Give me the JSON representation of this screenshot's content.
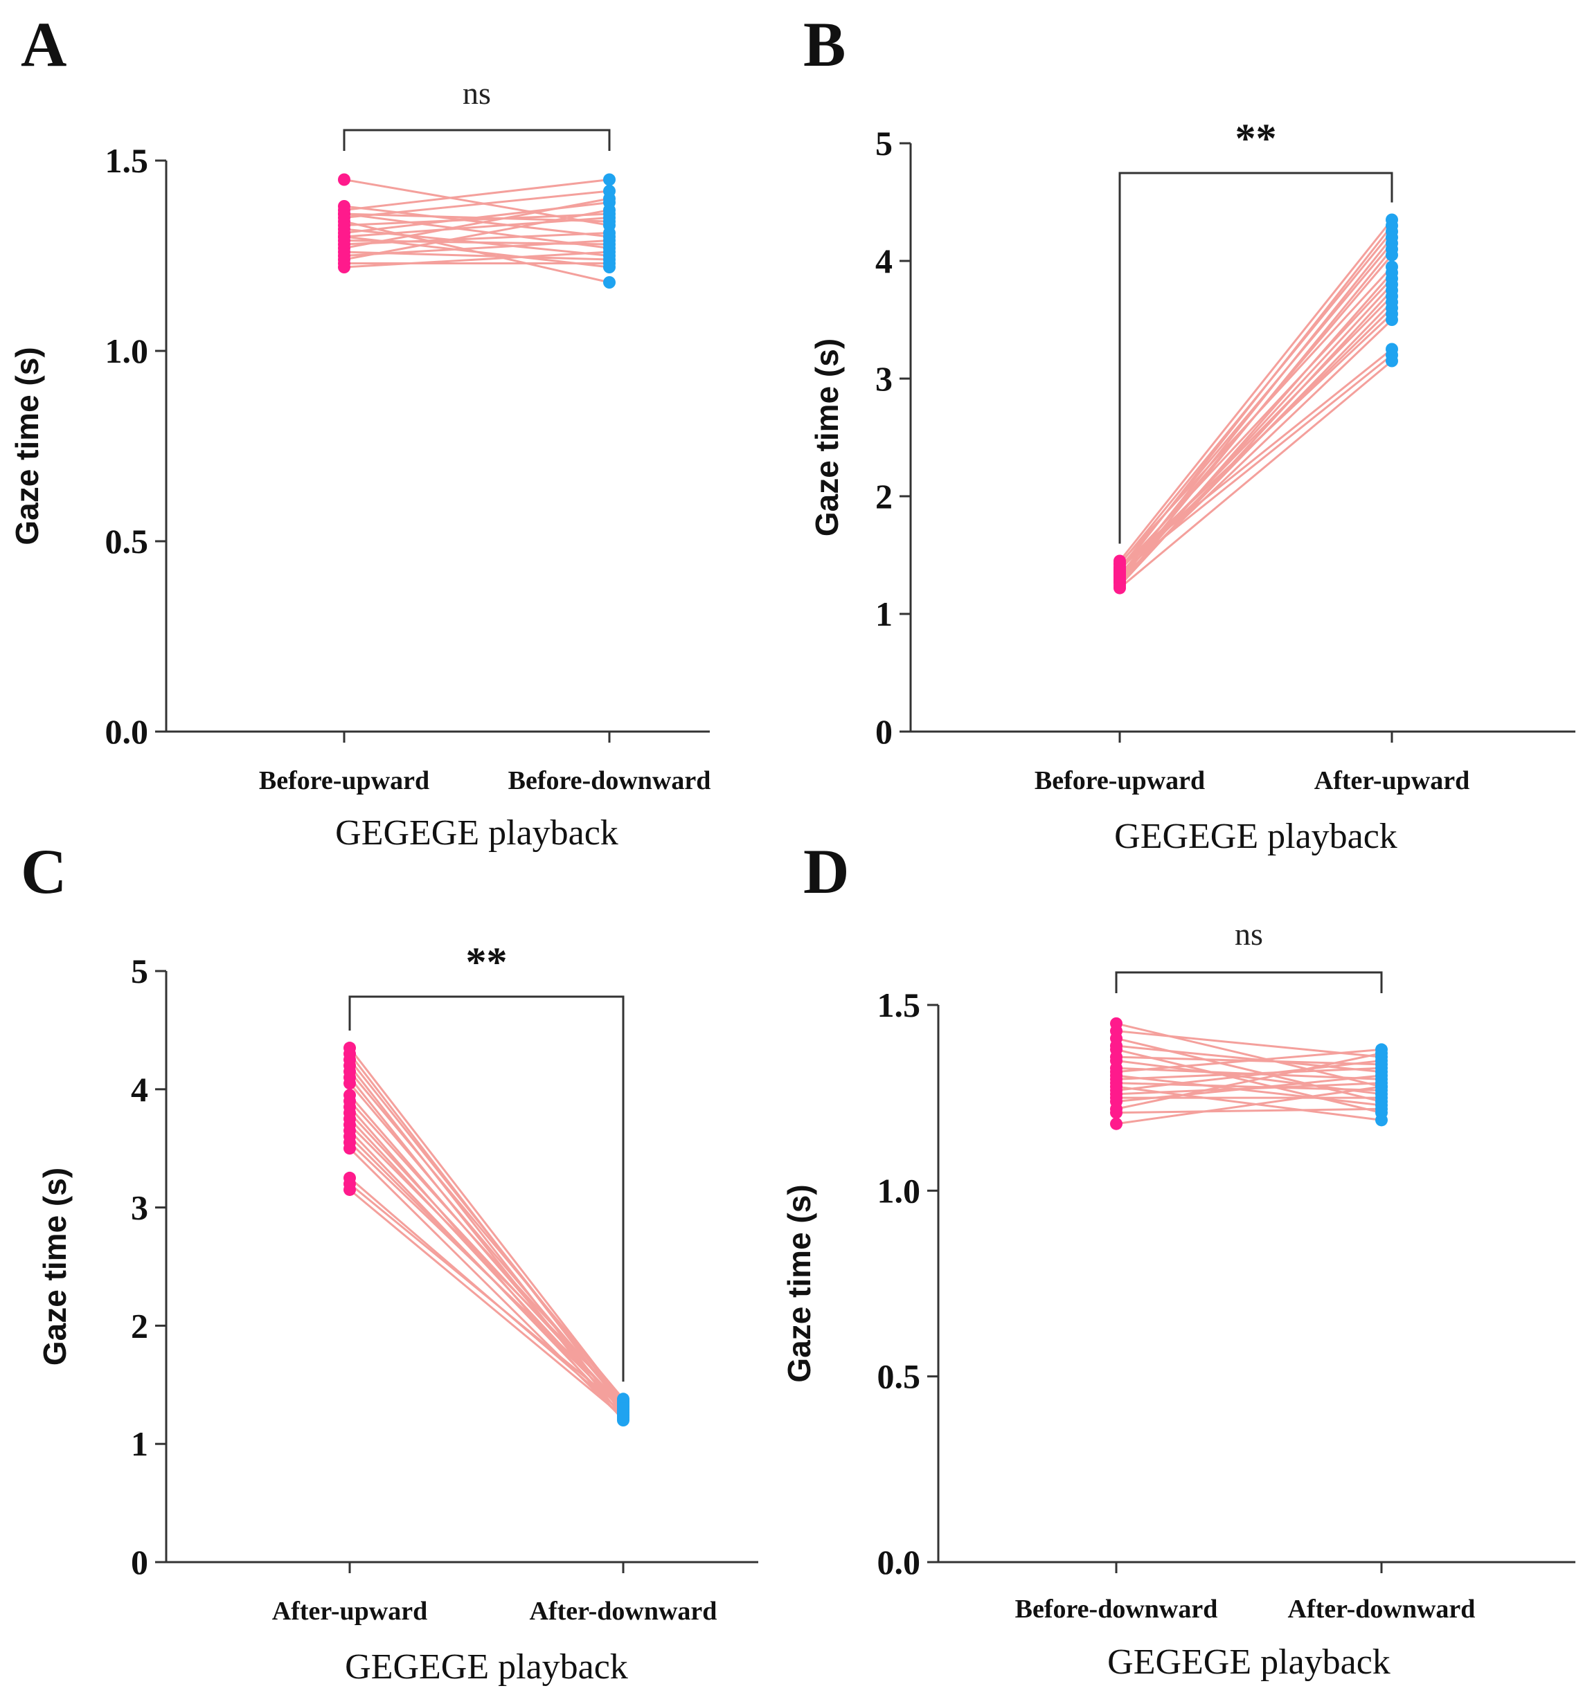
{
  "colors": {
    "before_point": "#ff1a8c",
    "after_point": "#1fa3f0",
    "pair_line": "#f4a09c",
    "axis": "#333333"
  },
  "chart_data": [
    {
      "panel": "A",
      "type": "scatter",
      "title": "",
      "xlabel": "GEGEGE playback",
      "ylabel": "Gaze time (s)",
      "categories": [
        "Before-upward",
        "Before-downward"
      ],
      "ylim": [
        0,
        1.5
      ],
      "yticks": [
        0.0,
        0.5,
        1.0,
        1.5
      ],
      "ytick_labels": [
        "0.0",
        "0.5",
        "1.0",
        "1.5"
      ],
      "significance": "ns",
      "series": [
        {
          "name": "Before-upward",
          "values": [
            1.45,
            1.38,
            1.37,
            1.36,
            1.35,
            1.34,
            1.33,
            1.32,
            1.31,
            1.3,
            1.3,
            1.29,
            1.28,
            1.27,
            1.26,
            1.25,
            1.24,
            1.23,
            1.22,
            1.36
          ]
        },
        {
          "name": "Before-downward",
          "values": [
            1.33,
            1.3,
            1.45,
            1.27,
            1.42,
            1.18,
            1.36,
            1.25,
            1.39,
            1.22,
            1.35,
            1.28,
            1.31,
            1.4,
            1.24,
            1.29,
            1.37,
            1.23,
            1.26,
            1.34
          ]
        }
      ]
    },
    {
      "panel": "B",
      "type": "scatter",
      "title": "",
      "xlabel": "GEGEGE playback",
      "ylabel": "Gaze time (s)",
      "categories": [
        "Before-upward",
        "After-upward"
      ],
      "ylim": [
        0,
        5
      ],
      "yticks": [
        0,
        1,
        2,
        3,
        4,
        5
      ],
      "ytick_labels": [
        "0",
        "1",
        "2",
        "3",
        "4",
        "5"
      ],
      "significance": "**",
      "series": [
        {
          "name": "Before-upward",
          "values": [
            1.45,
            1.43,
            1.42,
            1.4,
            1.39,
            1.38,
            1.37,
            1.36,
            1.35,
            1.34,
            1.33,
            1.32,
            1.31,
            1.3,
            1.29,
            1.28,
            1.27,
            1.26,
            1.24,
            1.22
          ]
        },
        {
          "name": "After-upward",
          "values": [
            4.35,
            3.95,
            4.25,
            3.25,
            4.15,
            3.55,
            3.85,
            4.3,
            3.2,
            3.7,
            4.05,
            3.6,
            4.2,
            3.8,
            3.5,
            4.1,
            3.65,
            3.9,
            3.75,
            3.15
          ]
        }
      ]
    },
    {
      "panel": "C",
      "type": "scatter",
      "title": "",
      "xlabel": "GEGEGE playback",
      "ylabel": "Gaze time (s)",
      "categories": [
        "After-upward",
        "After-downward"
      ],
      "ylim": [
        0,
        5
      ],
      "yticks": [
        0,
        1,
        2,
        3,
        4,
        5
      ],
      "ytick_labels": [
        "0",
        "1",
        "2",
        "3",
        "4",
        "5"
      ],
      "significance": "**",
      "series": [
        {
          "name": "After-upward",
          "values": [
            4.35,
            4.3,
            4.25,
            4.2,
            4.15,
            4.1,
            4.05,
            3.95,
            3.9,
            3.85,
            3.8,
            3.75,
            3.7,
            3.65,
            3.6,
            3.55,
            3.5,
            3.25,
            3.2,
            3.15
          ]
        },
        {
          "name": "After-downward",
          "values": [
            1.36,
            1.3,
            1.34,
            1.25,
            1.38,
            1.22,
            1.32,
            1.28,
            1.35,
            1.2,
            1.31,
            1.27,
            1.37,
            1.24,
            1.29,
            1.33,
            1.21,
            1.26,
            1.3,
            1.23
          ]
        }
      ]
    },
    {
      "panel": "D",
      "type": "scatter",
      "title": "",
      "xlabel": "GEGEGE playback",
      "ylabel": "Gaze time (s)",
      "categories": [
        "Before-downward",
        "After-downward"
      ],
      "ylim": [
        0,
        1.5
      ],
      "yticks": [
        0.0,
        0.5,
        1.0,
        1.5
      ],
      "ytick_labels": [
        "0.0",
        "0.5",
        "1.0",
        "1.5"
      ],
      "significance": "ns",
      "series": [
        {
          "name": "Before-downward",
          "values": [
            1.45,
            1.43,
            1.41,
            1.39,
            1.38,
            1.36,
            1.35,
            1.33,
            1.32,
            1.31,
            1.3,
            1.29,
            1.28,
            1.27,
            1.26,
            1.25,
            1.24,
            1.22,
            1.21,
            1.18
          ]
        },
        {
          "name": "After-downward",
          "values": [
            1.28,
            1.36,
            1.24,
            1.32,
            1.21,
            1.34,
            1.26,
            1.3,
            1.38,
            1.23,
            1.33,
            1.27,
            1.19,
            1.35,
            1.29,
            1.25,
            1.31,
            1.37,
            1.22,
            1.28
          ]
        }
      ]
    }
  ]
}
